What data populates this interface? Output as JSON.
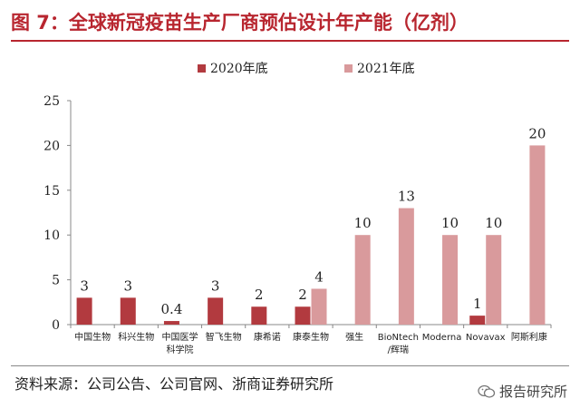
{
  "title": "图  7：全球新冠疫苗生产厂商预估设计年产能（亿剂）",
  "source": "资料来源：公司公告、公司官网、浙商证券研究所",
  "watermark": "报告研究所",
  "colors": {
    "title": "#b8262f",
    "series_2020": "#b23a3f",
    "series_2021": "#d99a9c"
  },
  "chart_data": {
    "type": "bar",
    "title": "",
    "xlabel": "",
    "ylabel": "",
    "ylim": [
      0,
      25
    ],
    "yticks": [
      0,
      5,
      10,
      15,
      20,
      25
    ],
    "legend_position": "top",
    "grid": false,
    "categories": [
      [
        "中国生物"
      ],
      [
        "科兴生物"
      ],
      [
        "中国医学",
        "科学院"
      ],
      [
        "智飞生物"
      ],
      [
        "康希诺"
      ],
      [
        "康泰生物"
      ],
      [
        "强生"
      ],
      [
        "BioNtech",
        "/辉瑞"
      ],
      [
        "Moderna"
      ],
      [
        "Novavax"
      ],
      [
        "阿斯利康"
      ]
    ],
    "series": [
      {
        "name": "2020年底",
        "color": "#b23a3f",
        "values": [
          3,
          3,
          0.4,
          3,
          2,
          2,
          null,
          null,
          null,
          1,
          null
        ],
        "labels": [
          "3",
          "3",
          "0.4",
          "3",
          "2",
          "2",
          "",
          "",
          "",
          "1",
          ""
        ]
      },
      {
        "name": "2021年底",
        "color": "#d99a9c",
        "values": [
          null,
          null,
          null,
          null,
          null,
          4,
          10,
          13,
          10,
          10,
          20
        ],
        "labels": [
          "",
          "",
          "",
          "",
          "",
          "4",
          "10",
          "13",
          "10",
          "10",
          "20"
        ]
      }
    ]
  }
}
